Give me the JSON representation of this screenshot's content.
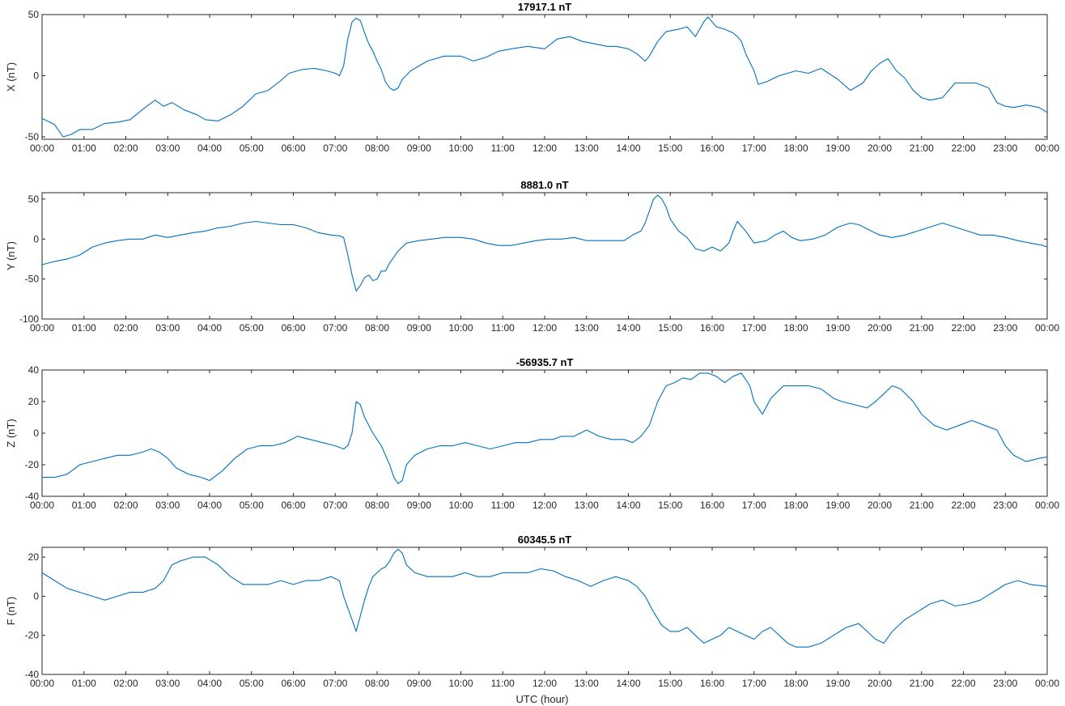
{
  "colors": {
    "series": "#0072bd",
    "axis": "#262626"
  },
  "chart_data": [
    {
      "type": "line",
      "title": "17917.1 nT",
      "ylabel": "X (nT)",
      "xlabel": "",
      "ylim": [
        -52,
        50
      ],
      "yticks": [
        -50,
        0,
        50
      ],
      "xlim": [
        0,
        24
      ],
      "xticks": [
        "00:00",
        "01:00",
        "02:00",
        "03:00",
        "04:00",
        "05:00",
        "06:00",
        "07:00",
        "08:00",
        "09:00",
        "10:00",
        "11:00",
        "12:00",
        "13:00",
        "14:00",
        "15:00",
        "16:00",
        "17:00",
        "18:00",
        "19:00",
        "20:00",
        "21:00",
        "22:00",
        "23:00",
        "00:00"
      ],
      "grid": false,
      "series": [
        {
          "x": [
            0,
            0.3,
            0.5,
            0.7,
            0.9,
            1.2,
            1.5,
            1.8,
            2.1,
            2.5,
            2.7,
            2.9,
            3.1,
            3.4,
            3.7,
            3.9,
            4.2,
            4.5,
            4.8,
            5.1,
            5.4,
            5.7,
            5.9,
            6.2,
            6.5,
            6.8,
            7.0,
            7.1,
            7.2,
            7.3,
            7.4,
            7.5,
            7.6,
            7.7,
            7.8,
            7.9,
            8.0,
            8.1,
            8.2,
            8.3,
            8.4,
            8.5,
            8.6,
            8.8,
            9.2,
            9.6,
            10.0,
            10.3,
            10.6,
            10.9,
            11.2,
            11.6,
            12.0,
            12.3,
            12.6,
            12.9,
            13.2,
            13.5,
            13.7,
            14.0,
            14.2,
            14.4,
            14.5,
            14.7,
            14.9,
            15.2,
            15.4,
            15.6,
            15.8,
            15.9,
            16.1,
            16.3,
            16.5,
            16.6,
            16.7,
            16.8,
            17.0,
            17.1,
            17.3,
            17.6,
            18.0,
            18.3,
            18.6,
            19.0,
            19.3,
            19.6,
            19.8,
            20.0,
            20.2,
            20.4,
            20.6,
            20.8,
            21.0,
            21.2,
            21.5,
            21.8,
            22.0,
            22.3,
            22.6,
            22.8,
            23.0,
            23.2,
            23.5,
            23.8,
            24.0
          ],
          "y": [
            -35,
            -40,
            -50,
            -48,
            -44,
            -44,
            -39,
            -38,
            -36,
            -25,
            -20,
            -25,
            -22,
            -28,
            -32,
            -36,
            -37,
            -32,
            -25,
            -15,
            -12,
            -4,
            2,
            5,
            6,
            4,
            2,
            0,
            8,
            30,
            44,
            47,
            45,
            35,
            26,
            20,
            12,
            5,
            -5,
            -10,
            -12,
            -10,
            -3,
            4,
            12,
            16,
            16,
            12,
            15,
            20,
            22,
            24,
            22,
            30,
            32,
            28,
            26,
            24,
            24,
            22,
            18,
            12,
            16,
            28,
            36,
            38,
            40,
            32,
            44,
            48,
            40,
            38,
            35,
            32,
            28,
            18,
            4,
            -7,
            -5,
            0,
            4,
            2,
            6,
            -3,
            -12,
            -6,
            4,
            10,
            14,
            4,
            -2,
            -12,
            -18,
            -20,
            -18,
            -6,
            -6,
            -6,
            -10,
            -22,
            -25,
            -26,
            -24,
            -26,
            -30
          ]
        }
      ]
    },
    {
      "type": "line",
      "title": "8881.0 nT",
      "ylabel": "Y (nT)",
      "xlabel": "",
      "ylim": [
        -100,
        58
      ],
      "yticks": [
        -100,
        -50,
        0,
        50
      ],
      "xlim": [
        0,
        24
      ],
      "xticks": [
        "00:00",
        "01:00",
        "02:00",
        "03:00",
        "04:00",
        "05:00",
        "06:00",
        "07:00",
        "08:00",
        "09:00",
        "10:00",
        "11:00",
        "12:00",
        "13:00",
        "14:00",
        "15:00",
        "16:00",
        "17:00",
        "18:00",
        "19:00",
        "20:00",
        "21:00",
        "22:00",
        "23:00",
        "00:00"
      ],
      "grid": false,
      "series": [
        {
          "x": [
            0,
            0.3,
            0.6,
            0.9,
            1.2,
            1.5,
            1.8,
            2.1,
            2.4,
            2.7,
            3.0,
            3.3,
            3.6,
            3.9,
            4.2,
            4.5,
            4.8,
            5.1,
            5.4,
            5.7,
            6.0,
            6.3,
            6.6,
            6.9,
            7.1,
            7.2,
            7.3,
            7.4,
            7.5,
            7.6,
            7.7,
            7.8,
            7.9,
            8.0,
            8.1,
            8.2,
            8.3,
            8.5,
            8.7,
            9.0,
            9.3,
            9.6,
            10.0,
            10.3,
            10.6,
            10.9,
            11.2,
            11.5,
            11.8,
            12.1,
            12.4,
            12.7,
            13.0,
            13.3,
            13.6,
            13.9,
            14.1,
            14.3,
            14.4,
            14.5,
            14.6,
            14.7,
            14.8,
            14.9,
            15.0,
            15.2,
            15.4,
            15.6,
            15.8,
            16.0,
            16.2,
            16.4,
            16.5,
            16.6,
            16.8,
            17.0,
            17.3,
            17.5,
            17.7,
            17.9,
            18.1,
            18.4,
            18.7,
            19.0,
            19.3,
            19.5,
            19.8,
            20.0,
            20.3,
            20.6,
            20.9,
            21.2,
            21.5,
            21.8,
            22.1,
            22.4,
            22.7,
            23.0,
            23.3,
            23.6,
            23.9,
            24.0
          ],
          "y": [
            -32,
            -28,
            -25,
            -20,
            -10,
            -5,
            -2,
            0,
            0,
            5,
            2,
            5,
            8,
            10,
            14,
            16,
            20,
            22,
            20,
            18,
            18,
            14,
            8,
            5,
            4,
            2,
            -20,
            -45,
            -65,
            -58,
            -48,
            -45,
            -52,
            -50,
            -40,
            -40,
            -30,
            -15,
            -5,
            -2,
            0,
            2,
            2,
            0,
            -5,
            -8,
            -8,
            -5,
            -2,
            0,
            0,
            2,
            -2,
            -2,
            -2,
            -2,
            5,
            10,
            20,
            35,
            50,
            55,
            50,
            40,
            25,
            10,
            2,
            -12,
            -15,
            -10,
            -15,
            -5,
            10,
            22,
            10,
            -5,
            -2,
            5,
            10,
            2,
            -2,
            0,
            5,
            15,
            20,
            18,
            10,
            5,
            2,
            5,
            10,
            15,
            20,
            15,
            10,
            5,
            5,
            2,
            -2,
            -5,
            -8,
            -10
          ]
        }
      ]
    },
    {
      "type": "line",
      "title": "-56935.7 nT",
      "ylabel": "Z (nT)",
      "xlabel": "",
      "ylim": [
        -40,
        40
      ],
      "yticks": [
        -40,
        -20,
        0,
        20,
        40
      ],
      "xlim": [
        0,
        24
      ],
      "xticks": [
        "00:00",
        "01:00",
        "02:00",
        "03:00",
        "04:00",
        "05:00",
        "06:00",
        "07:00",
        "08:00",
        "09:00",
        "10:00",
        "11:00",
        "12:00",
        "13:00",
        "14:00",
        "15:00",
        "16:00",
        "17:00",
        "18:00",
        "19:00",
        "20:00",
        "21:00",
        "22:00",
        "23:00",
        "00:00"
      ],
      "grid": false,
      "series": [
        {
          "x": [
            0,
            0.3,
            0.6,
            0.9,
            1.2,
            1.5,
            1.8,
            2.1,
            2.4,
            2.6,
            2.8,
            3.0,
            3.2,
            3.5,
            3.8,
            4.0,
            4.3,
            4.6,
            4.9,
            5.2,
            5.5,
            5.8,
            6.1,
            6.4,
            6.7,
            7.0,
            7.2,
            7.3,
            7.4,
            7.5,
            7.6,
            7.7,
            7.8,
            7.9,
            8.0,
            8.1,
            8.2,
            8.3,
            8.4,
            8.5,
            8.6,
            8.7,
            8.9,
            9.2,
            9.5,
            9.8,
            10.1,
            10.4,
            10.7,
            11.0,
            11.3,
            11.6,
            11.9,
            12.2,
            12.4,
            12.7,
            13.0,
            13.3,
            13.6,
            13.9,
            14.1,
            14.3,
            14.5,
            14.7,
            14.9,
            15.1,
            15.3,
            15.5,
            15.7,
            15.9,
            16.1,
            16.3,
            16.5,
            16.7,
            16.9,
            17.0,
            17.2,
            17.4,
            17.7,
            18.0,
            18.3,
            18.6,
            18.9,
            19.1,
            19.4,
            19.7,
            19.9,
            20.1,
            20.3,
            20.5,
            20.8,
            21.0,
            21.3,
            21.6,
            21.9,
            22.2,
            22.5,
            22.8,
            23.0,
            23.2,
            23.5,
            23.8,
            24.0
          ],
          "y": [
            -28,
            -28,
            -26,
            -20,
            -18,
            -16,
            -14,
            -14,
            -12,
            -10,
            -12,
            -16,
            -22,
            -26,
            -28,
            -30,
            -24,
            -16,
            -10,
            -8,
            -8,
            -6,
            -2,
            -4,
            -6,
            -8,
            -10,
            -8,
            0,
            20,
            18,
            10,
            5,
            0,
            -4,
            -8,
            -14,
            -20,
            -28,
            -32,
            -30,
            -20,
            -14,
            -10,
            -8,
            -8,
            -6,
            -8,
            -10,
            -8,
            -6,
            -6,
            -4,
            -4,
            -2,
            -2,
            2,
            -2,
            -4,
            -4,
            -6,
            -2,
            5,
            20,
            30,
            32,
            35,
            34,
            38,
            38,
            36,
            32,
            36,
            38,
            30,
            20,
            12,
            22,
            30,
            30,
            30,
            28,
            22,
            20,
            18,
            16,
            20,
            25,
            30,
            28,
            20,
            12,
            5,
            2,
            5,
            8,
            5,
            2,
            -8,
            -14,
            -18,
            -16,
            -15
          ]
        }
      ]
    },
    {
      "type": "line",
      "title": "60345.5 nT",
      "ylabel": "F (nT)",
      "xlabel": "UTC (hour)",
      "ylim": [
        -40,
        25
      ],
      "yticks": [
        -40,
        -20,
        0,
        20
      ],
      "xlim": [
        0,
        24
      ],
      "xticks": [
        "00:00",
        "01:00",
        "02:00",
        "03:00",
        "04:00",
        "05:00",
        "06:00",
        "07:00",
        "08:00",
        "09:00",
        "10:00",
        "11:00",
        "12:00",
        "13:00",
        "14:00",
        "15:00",
        "16:00",
        "17:00",
        "18:00",
        "19:00",
        "20:00",
        "21:00",
        "22:00",
        "23:00",
        "00:00"
      ],
      "grid": false,
      "series": [
        {
          "x": [
            0,
            0.3,
            0.6,
            0.9,
            1.2,
            1.5,
            1.8,
            2.1,
            2.4,
            2.7,
            2.9,
            3.1,
            3.3,
            3.6,
            3.9,
            4.2,
            4.5,
            4.8,
            5.1,
            5.4,
            5.7,
            6.0,
            6.3,
            6.6,
            6.9,
            7.1,
            7.2,
            7.3,
            7.4,
            7.5,
            7.6,
            7.7,
            7.8,
            7.9,
            8.0,
            8.1,
            8.2,
            8.3,
            8.4,
            8.5,
            8.6,
            8.7,
            8.9,
            9.2,
            9.5,
            9.8,
            10.1,
            10.4,
            10.7,
            11.0,
            11.3,
            11.6,
            11.9,
            12.2,
            12.5,
            12.8,
            13.1,
            13.4,
            13.7,
            14.0,
            14.2,
            14.4,
            14.6,
            14.8,
            15.0,
            15.2,
            15.4,
            15.6,
            15.8,
            16.0,
            16.2,
            16.4,
            16.6,
            16.8,
            17.0,
            17.2,
            17.4,
            17.6,
            17.8,
            18.0,
            18.3,
            18.6,
            18.9,
            19.2,
            19.5,
            19.7,
            19.9,
            20.1,
            20.3,
            20.6,
            20.9,
            21.2,
            21.5,
            21.8,
            22.1,
            22.4,
            22.7,
            23.0,
            23.3,
            23.6,
            24.0
          ],
          "y": [
            12,
            8,
            4,
            2,
            0,
            -2,
            0,
            2,
            2,
            4,
            8,
            16,
            18,
            20,
            20,
            16,
            10,
            6,
            6,
            6,
            8,
            6,
            8,
            8,
            10,
            8,
            0,
            -6,
            -12,
            -18,
            -10,
            -2,
            5,
            10,
            12,
            14,
            15,
            18,
            22,
            24,
            22,
            16,
            12,
            10,
            10,
            10,
            12,
            10,
            10,
            12,
            12,
            12,
            14,
            13,
            10,
            8,
            5,
            8,
            10,
            8,
            5,
            0,
            -8,
            -15,
            -18,
            -18,
            -16,
            -20,
            -24,
            -22,
            -20,
            -16,
            -18,
            -20,
            -22,
            -18,
            -16,
            -20,
            -24,
            -26,
            -26,
            -24,
            -20,
            -16,
            -14,
            -18,
            -22,
            -24,
            -18,
            -12,
            -8,
            -4,
            -2,
            -5,
            -4,
            -2,
            2,
            6,
            8,
            6,
            5
          ]
        }
      ]
    }
  ]
}
